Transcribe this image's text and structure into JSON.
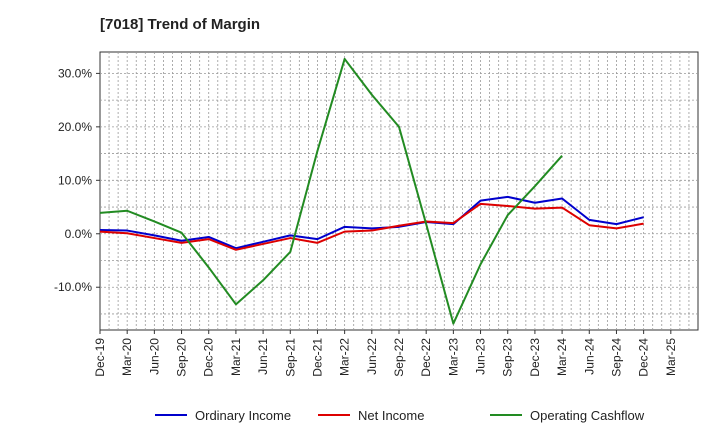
{
  "chart_data": {
    "type": "line",
    "title": "[7018]  Trend of Margin",
    "xlabel": "",
    "ylabel": "",
    "ylim": [
      -18,
      34
    ],
    "y_ticks": [
      30,
      20,
      10,
      0,
      -10
    ],
    "y_tick_labels": [
      "30.0%",
      "20.0%",
      "10.0%",
      "0.0%",
      "-10.0%"
    ],
    "grid": true,
    "legend_position": "bottom",
    "categories": [
      "Dec-19",
      "Mar-20",
      "Jun-20",
      "Sep-20",
      "Dec-20",
      "Mar-21",
      "Jun-21",
      "Sep-21",
      "Dec-21",
      "Mar-22",
      "Jun-22",
      "Sep-22",
      "Dec-22",
      "Mar-23",
      "Jun-23",
      "Sep-23",
      "Dec-23",
      "Mar-24",
      "Jun-24",
      "Sep-24",
      "Dec-24",
      "Mar-25"
    ],
    "series": [
      {
        "name": "Ordinary Income",
        "color": "#0000cc",
        "values": [
          0.7,
          0.6,
          -0.3,
          -1.3,
          -0.6,
          -2.7,
          -1.5,
          -0.3,
          -1.0,
          1.3,
          1.0,
          1.3,
          2.2,
          1.8,
          6.2,
          6.9,
          5.8,
          6.6,
          2.6,
          1.8,
          3.1,
          null
        ]
      },
      {
        "name": "Net Income",
        "color": "#dd0000",
        "values": [
          0.4,
          0.1,
          -0.8,
          -1.7,
          -1.0,
          -3.0,
          -1.9,
          -0.8,
          -1.7,
          0.4,
          0.6,
          1.5,
          2.3,
          2.0,
          5.6,
          5.2,
          4.7,
          4.9,
          1.6,
          1.0,
          1.9,
          null
        ]
      },
      {
        "name": "Operating Cashflow",
        "color": "#228b22",
        "values": [
          3.9,
          4.3,
          2.3,
          0.2,
          -6.3,
          -13.2,
          -8.7,
          -3.4,
          15.5,
          32.7,
          26.0,
          20.0,
          1.8,
          -16.8,
          -5.7,
          3.5,
          8.9,
          14.6,
          null,
          null,
          null,
          null
        ]
      }
    ]
  }
}
